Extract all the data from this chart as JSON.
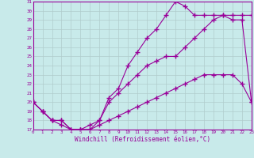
{
  "xlabel": "Windchill (Refroidissement éolien,°C)",
  "bg_color": "#c8eaea",
  "grid_color": "#b0cccc",
  "line_color": "#990099",
  "xmin": 0,
  "xmax": 23,
  "ymin": 17,
  "ymax": 31,
  "series": [
    {
      "x": [
        0,
        1,
        2,
        3,
        4,
        5,
        6,
        7,
        8,
        9,
        10,
        11,
        12,
        13,
        14,
        15,
        16,
        17,
        18,
        19,
        20,
        21,
        22,
        23
      ],
      "y": [
        20,
        19,
        18,
        18,
        17,
        17,
        17,
        17.5,
        18,
        18.5,
        19,
        19.5,
        20,
        20.5,
        21,
        21.5,
        22,
        22.5,
        23,
        23,
        23,
        23,
        22,
        20
      ]
    },
    {
      "x": [
        0,
        1,
        2,
        3,
        4,
        5,
        6,
        7,
        8,
        9,
        10,
        11,
        12,
        13,
        14,
        15,
        16,
        17,
        18,
        19,
        20,
        21,
        22,
        23
      ],
      "y": [
        20,
        19,
        18,
        18,
        17,
        17,
        17,
        18,
        20,
        21,
        22,
        23,
        24,
        24.5,
        25,
        25,
        26,
        27,
        28,
        29,
        29.5,
        29,
        29,
        20
      ]
    },
    {
      "x": [
        0,
        1,
        2,
        3,
        4,
        5,
        6,
        7,
        8,
        9,
        10,
        11,
        12,
        13,
        14,
        15,
        16,
        17,
        18,
        19,
        20,
        21,
        22,
        23
      ],
      "y": [
        20,
        19,
        18,
        17.5,
        17,
        17,
        17.5,
        18,
        20.5,
        21.5,
        24,
        25.5,
        27,
        28,
        29.5,
        31,
        30.5,
        29.5,
        29.5,
        29.5,
        29.5,
        29.5,
        29.5,
        29.5
      ]
    }
  ]
}
